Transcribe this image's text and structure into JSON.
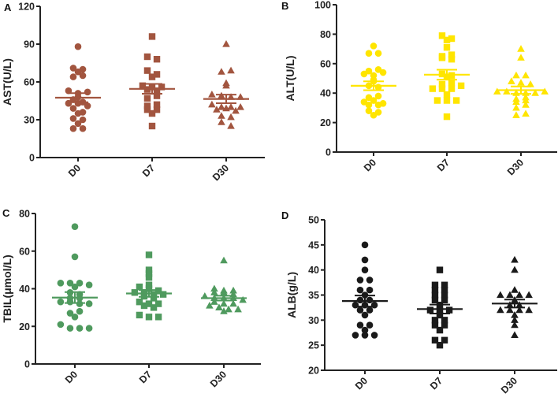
{
  "chart_data": [
    {
      "type": "scatter",
      "panel": "A",
      "ylabel": "AST(U/L)",
      "ylim": [
        0,
        120
      ],
      "yticks": [
        0,
        30,
        60,
        90,
        120
      ],
      "categories": [
        "D0",
        "D7",
        "D30"
      ],
      "color": "#A2553F",
      "markers": [
        "circle",
        "square",
        "triangle"
      ],
      "groups": [
        {
          "name": "D0",
          "values": [
            88,
            71,
            68,
            64,
            65,
            70,
            53,
            51,
            52,
            46,
            48,
            43,
            44,
            43,
            39,
            41,
            35,
            36,
            31,
            30,
            27,
            23,
            23
          ],
          "mean": 47.5,
          "sem": 3.6
        },
        {
          "name": "D7",
          "values": [
            96,
            80,
            78,
            69,
            64,
            66,
            57,
            56,
            56,
            54,
            53,
            47,
            49,
            41,
            42,
            38,
            38,
            35,
            25
          ],
          "mean": 54.5,
          "sem": 3.9
        },
        {
          "name": "D30",
          "values": [
            90,
            68,
            69,
            59,
            57,
            50,
            49,
            48,
            48,
            42,
            40,
            40,
            40,
            38,
            39,
            37,
            33,
            32,
            28,
            25
          ],
          "mean": 46.5,
          "sem": 3.4
        }
      ]
    },
    {
      "type": "scatter",
      "panel": "B",
      "ylabel": "ALT(U/L)",
      "ylim": [
        0,
        100
      ],
      "yticks": [
        0,
        20,
        40,
        60,
        80,
        100
      ],
      "categories": [
        "D0",
        "D7",
        "D30"
      ],
      "color": "#FFE500",
      "markers": [
        "circle",
        "square",
        "triangle"
      ],
      "groups": [
        {
          "name": "D0",
          "values": [
            72,
            67,
            67,
            55,
            53,
            52,
            54,
            56,
            48,
            49,
            45,
            44,
            37,
            38,
            34,
            35,
            32,
            32,
            33,
            28,
            25,
            27
          ],
          "mean": 45,
          "sem": 3
        },
        {
          "name": "D7",
          "values": [
            79,
            77,
            76,
            71,
            65,
            64,
            63,
            66,
            53,
            52,
            51,
            46,
            47,
            43,
            43,
            43,
            45,
            39,
            35,
            35,
            35,
            24
          ],
          "mean": 52.5,
          "sem": 3.4
        },
        {
          "name": "D30",
          "values": [
            70,
            64,
            52,
            52,
            48,
            47,
            46,
            41,
            41,
            40,
            40,
            40,
            41,
            36,
            37,
            34,
            35,
            30,
            32,
            25,
            26
          ],
          "mean": 42,
          "sem": 2.5
        }
      ]
    },
    {
      "type": "scatter",
      "panel": "C",
      "ylabel": "TBIL(μmol/L)",
      "ylim": [
        0,
        80
      ],
      "yticks": [
        0,
        20,
        40,
        60,
        80
      ],
      "categories": [
        "D0",
        "D7",
        "D30"
      ],
      "color": "#4F9A5E",
      "markers": [
        "circle",
        "square",
        "triangle"
      ],
      "groups": [
        {
          "name": "D0",
          "values": [
            73,
            57,
            43,
            43,
            43,
            42,
            41,
            38,
            37,
            35,
            35,
            33,
            33,
            32,
            32,
            27,
            28,
            25,
            21,
            19,
            19,
            19
          ],
          "mean": 35.3,
          "sem": 2.9
        },
        {
          "name": "D7",
          "values": [
            58,
            50,
            48,
            46,
            42,
            41,
            40,
            39,
            38,
            38,
            37,
            37,
            36,
            35,
            33,
            32,
            32,
            31,
            30,
            26,
            25,
            25
          ],
          "mean": 37.5,
          "sem": 1.8
        },
        {
          "name": "D30",
          "values": [
            55,
            40,
            39,
            39,
            38,
            38,
            37,
            36,
            35,
            35,
            35,
            34,
            33,
            32,
            32,
            31,
            30,
            29,
            29,
            28
          ],
          "mean": 35,
          "sem": 1.3
        }
      ]
    },
    {
      "type": "scatter",
      "panel": "D",
      "ylabel": "ALB(g/L)",
      "ylim": [
        20,
        50
      ],
      "yticks": [
        20,
        25,
        30,
        35,
        40,
        45,
        50
      ],
      "categories": [
        "D0",
        "D7",
        "D30"
      ],
      "color": "#1A1A1A",
      "markers": [
        "circle",
        "square",
        "triangle"
      ],
      "groups": [
        {
          "name": "D0",
          "values": [
            45,
            42,
            40,
            38,
            38,
            36,
            36,
            35,
            34,
            34,
            33,
            33,
            33,
            32,
            32,
            31,
            29,
            29,
            28,
            27,
            27,
            27
          ],
          "mean": 33.8,
          "sem": 1.1
        },
        {
          "name": "D7",
          "values": [
            40,
            37,
            37,
            36,
            36,
            35,
            35,
            34,
            34,
            33,
            32,
            32,
            32,
            31,
            30,
            30,
            29,
            29,
            28,
            26,
            26,
            25
          ],
          "mean": 32.2,
          "sem": 0.9
        },
        {
          "name": "D30",
          "values": [
            42,
            40,
            36,
            35,
            35,
            35,
            35,
            34,
            33,
            33,
            32,
            32,
            32,
            32,
            31,
            30,
            29,
            27
          ],
          "mean": 33.3,
          "sem": 0.8
        }
      ]
    }
  ]
}
